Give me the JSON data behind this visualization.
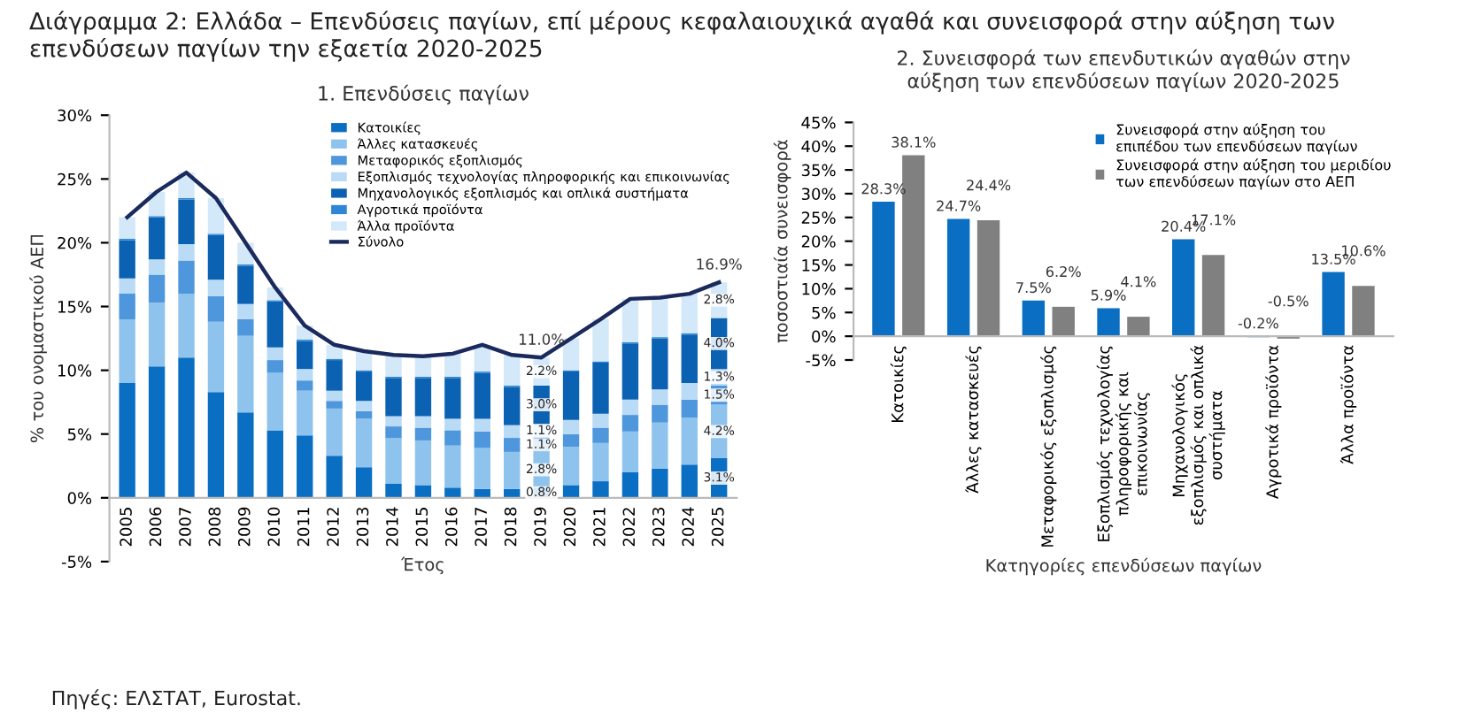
{
  "chart_data": [
    {
      "type": "bar",
      "stacked": true,
      "title": "1. Επενδύσεις παγίων",
      "xlabel": "Έτος",
      "ylabel": "% του ονομαστικού ΑΕΠ",
      "categories": [
        "2005",
        "2006",
        "2007",
        "2008",
        "2009",
        "2010",
        "2011",
        "2012",
        "2013",
        "2014",
        "2015",
        "2016",
        "2017",
        "2018",
        "2019",
        "2020",
        "2021",
        "2022",
        "2023",
        "2024",
        "2025"
      ],
      "ylim": [
        -5,
        30
      ],
      "yticks": [
        {
          "value": -5,
          "label": "-5%"
        },
        {
          "value": 0,
          "label": "0%"
        },
        {
          "value": 5,
          "label": "5%"
        },
        {
          "value": 10,
          "label": "10%"
        },
        {
          "value": 15,
          "label": "15%"
        },
        {
          "value": 20,
          "label": "20%"
        },
        {
          "value": 25,
          "label": "25%"
        },
        {
          "value": 30,
          "label": "30%"
        }
      ],
      "legend": "top right",
      "grid": false,
      "series": [
        {
          "name": "Κατοικίες",
          "color": "#0a6fc2",
          "values": [
            9,
            10.3,
            11,
            8.3,
            6.7,
            5.3,
            4.9,
            3.3,
            2.4,
            1.1,
            1.0,
            0.8,
            0.7,
            0.7,
            0.8,
            1.0,
            1.3,
            2.0,
            2.3,
            2.6,
            3.1
          ],
          "value_labels": [
            null,
            null,
            null,
            null,
            null,
            null,
            null,
            null,
            null,
            null,
            null,
            null,
            null,
            null,
            "0.8%",
            null,
            null,
            null,
            null,
            null,
            "3.1%"
          ]
        },
        {
          "name": "Άλλες κατασκευές",
          "color": "#8ec3ee",
          "values": [
            5,
            5,
            5,
            5.5,
            6,
            4.5,
            3.5,
            3.7,
            3.8,
            3.6,
            3.5,
            3.3,
            3.2,
            2.9,
            2.8,
            3.0,
            3.0,
            3.2,
            3.6,
            3.7,
            4.2
          ],
          "value_labels": [
            null,
            null,
            null,
            null,
            null,
            null,
            null,
            null,
            null,
            null,
            null,
            null,
            null,
            null,
            "2.8%",
            null,
            null,
            null,
            null,
            null,
            "4.2%"
          ]
        },
        {
          "name": "Μεταφορικός εξοπλισμός",
          "color": "#4f97dc",
          "values": [
            2.0,
            2.2,
            2.6,
            2.0,
            1.3,
            1.0,
            0.8,
            0.6,
            0.6,
            0.9,
            1.0,
            1.2,
            1.3,
            1.1,
            1.1,
            1.0,
            1.2,
            1.3,
            1.4,
            1.4,
            1.5
          ],
          "value_labels": [
            null,
            null,
            null,
            null,
            null,
            null,
            null,
            null,
            null,
            null,
            null,
            null,
            null,
            null,
            "1.1%",
            null,
            null,
            null,
            null,
            null,
            "1.5%"
          ]
        },
        {
          "name": "Εξοπλισμός τεχνολογίας πληροφορικής και επικοινωνίας",
          "color": "#b9dbf6",
          "values": [
            1.2,
            1.2,
            1.3,
            1.3,
            1.2,
            1.0,
            0.9,
            0.8,
            0.8,
            0.8,
            0.9,
            0.9,
            1.0,
            1.0,
            1.1,
            1.1,
            1.1,
            1.2,
            1.2,
            1.3,
            1.3
          ],
          "value_labels": [
            null,
            null,
            null,
            null,
            null,
            null,
            null,
            null,
            null,
            null,
            null,
            null,
            null,
            null,
            "1.1%",
            null,
            null,
            null,
            null,
            null,
            "1.3%"
          ]
        },
        {
          "name": "Μηχανολογικός εξοπλισμός και οπλικά συστήματα",
          "color": "#0b62b3",
          "values": [
            3.0,
            3.3,
            3.5,
            3.5,
            3.0,
            3.6,
            2.2,
            2.4,
            2.3,
            3.0,
            3.0,
            3.2,
            3.6,
            3.0,
            3.0,
            3.8,
            4.0,
            4.4,
            4.0,
            3.8,
            4.0
          ],
          "value_labels": [
            null,
            null,
            null,
            null,
            null,
            null,
            null,
            null,
            null,
            null,
            null,
            null,
            null,
            null,
            "3.0%",
            null,
            null,
            null,
            null,
            null,
            "4.0%"
          ]
        },
        {
          "name": "Αγροτικά προϊόντα",
          "color": "#2f86d6",
          "values": [
            0.1,
            0.1,
            0.1,
            0.1,
            0.1,
            0.1,
            0.1,
            0.1,
            0.1,
            0.1,
            0.1,
            0.1,
            0.1,
            0.1,
            0,
            0.1,
            0.1,
            0.1,
            0.1,
            0.1,
            0
          ]
        },
        {
          "name": "Άλλα προϊόντα",
          "color": "#d3e8f8",
          "values": [
            1.7,
            1.9,
            2.0,
            2.8,
            1.7,
            1.0,
            1.1,
            1.1,
            1.5,
            1.7,
            1.6,
            1.8,
            2.1,
            2.4,
            2.2,
            2.5,
            3.3,
            3.4,
            3.1,
            3.1,
            2.8
          ],
          "value_labels": [
            null,
            null,
            null,
            null,
            null,
            null,
            null,
            null,
            null,
            null,
            null,
            null,
            null,
            null,
            "2.2%",
            null,
            null,
            null,
            null,
            null,
            "2.8%"
          ]
        },
        {
          "name": "Σύνολο",
          "type": "line",
          "color": "#1b2a5c",
          "values": [
            22,
            24,
            25.5,
            23.5,
            20,
            16.5,
            13.5,
            12,
            11.5,
            11.2,
            11.1,
            11.3,
            12,
            11.2,
            11.0,
            12.5,
            14,
            15.6,
            15.7,
            16,
            16.9
          ],
          "value_labels": [
            null,
            null,
            null,
            null,
            null,
            null,
            null,
            null,
            null,
            null,
            null,
            null,
            null,
            null,
            "11.0%",
            null,
            null,
            null,
            null,
            null,
            "16.9%"
          ]
        }
      ]
    },
    {
      "type": "bar",
      "title": "2. Συνεισφορά των επενδυτικών αγαθών στην\nαύξηση των επενδύσεων παγίων 2020-2025",
      "xlabel": "Κατηγορίες επενδύσεων παγίων",
      "ylabel": "ποσοστιαία συνεισφορά",
      "categories": [
        "Κατοικίες",
        "Άλλες κατασκευές",
        "Μεταφορικός εξοπλισμός",
        "Εξοπλισμός τεχνολογίας\nπληροφορικής και\nεπικοινωνίας",
        "Μηχανολογικός\nεξοπλισμός και οπλικά\nσυστήματα",
        "Αγροτικά προϊόντα",
        "Άλλα προϊόντα"
      ],
      "ylim": [
        -5,
        45
      ],
      "yticks": [
        {
          "value": -5,
          "label": "-5%"
        },
        {
          "value": 0,
          "label": "0%"
        },
        {
          "value": 5,
          "label": "5%"
        },
        {
          "value": 10,
          "label": "10%"
        },
        {
          "value": 15,
          "label": "15%"
        },
        {
          "value": 20,
          "label": "20%"
        },
        {
          "value": 25,
          "label": "25%"
        },
        {
          "value": 30,
          "label": "30%"
        },
        {
          "value": 35,
          "label": "35%"
        },
        {
          "value": 40,
          "label": "40%"
        },
        {
          "value": 45,
          "label": "45%"
        }
      ],
      "legend": "top right",
      "grid": false,
      "series": [
        {
          "name": "Συνεισφορά στην αύξηση του\nεπιπέδου των επενδύσεων παγίων",
          "color": "#0a6fc2",
          "values": [
            28.3,
            24.7,
            7.5,
            5.9,
            20.4,
            -0.2,
            13.5
          ],
          "value_labels": [
            "28.3%",
            "24.7%",
            "7.5%",
            "5.9%",
            "20.4%",
            "-0.2%",
            "13.5%"
          ]
        },
        {
          "name": "Συνεισφορά στην αύξηση του μεριδίου\nτων επενδύσεων παγίων στο ΑΕΠ",
          "color": "#808080",
          "values": [
            38.1,
            24.4,
            6.2,
            4.1,
            17.1,
            -0.5,
            10.6
          ],
          "value_labels": [
            "38.1%",
            "24.4%",
            "6.2%",
            "4.1%",
            "17.1%",
            "-0.5%",
            "10.6%"
          ]
        }
      ]
    },
    {
      "type": "other",
      "title": "Διάγραμμα 2: Ελλάδα – Επενδύσεις παγίων, επί μέρους κεφαλαιουχικά αγαθά και συνεισφορά στην αύξηση των επενδύσεων παγίων την εξαετία 2020-2025",
      "annotations": [
        "Πηγές: ΕΛΣΤΑΤ, Eurostat."
      ]
    }
  ]
}
